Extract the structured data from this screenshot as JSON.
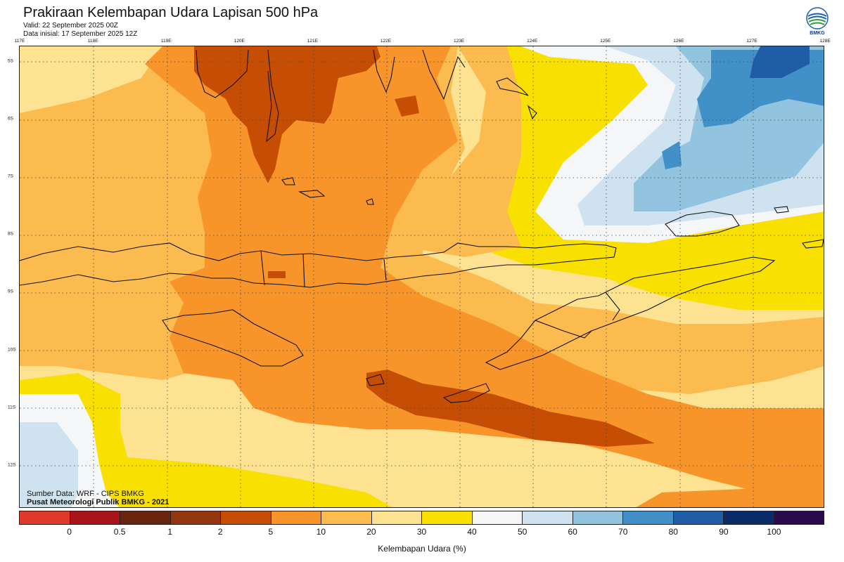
{
  "header": {
    "title": "Prakiraan Kelembapan Udara Lapisan 500 hPa",
    "valid": "Valid: 22 September 2025 00Z",
    "init": "Data inisial: 17 September 2025 12Z"
  },
  "logo": {
    "icon": "bmkg-logo-icon",
    "text": "BMKG"
  },
  "map": {
    "lon_labels": [
      "117E",
      "118E",
      "119E",
      "120E",
      "121E",
      "122E",
      "123E",
      "124E",
      "125E",
      "126E",
      "127E",
      "128E"
    ],
    "lat_labels": [
      "5S",
      "6S",
      "7S",
      "8S",
      "9S",
      "10S",
      "11S",
      "12S"
    ],
    "grid": "dotted",
    "source": "Sumber Data: WRF - CIPS BMKG",
    "credit": "Pusat Meteorologi Publik BMKG - 2021"
  },
  "colorbar": {
    "title": "Kelembapan Udara (%)",
    "colors": [
      "#e03a2c",
      "#a8141a",
      "#6b2410",
      "#93350f",
      "#c64d04",
      "#f7952b",
      "#fbbb4e",
      "#fde291",
      "#f8e000",
      "#f5f6f8",
      "#cfe2ef",
      "#92c4e0",
      "#4190c7",
      "#1f5ea6",
      "#0b2c6b",
      "#2a0a4a"
    ],
    "labels": [
      "0",
      "0.5",
      "1",
      "2",
      "5",
      "10",
      "20",
      "30",
      "40",
      "50",
      "60",
      "70",
      "80",
      "90",
      "100"
    ]
  }
}
